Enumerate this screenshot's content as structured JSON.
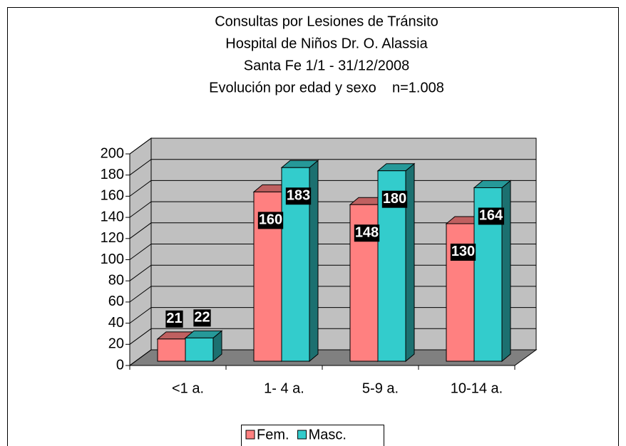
{
  "chart_data": {
    "type": "bar3d",
    "title": [
      "Consultas por Lesiones de Tránsito",
      "Hospital de Niños Dr. O. Alassia",
      "Santa Fe 1/1 - 31/12/2008",
      "Evolución por edad y sexo    n=1.008"
    ],
    "categories": [
      "<1 a.",
      "1- 4 a.",
      "5-9 a.",
      "10-14 a."
    ],
    "series": [
      {
        "name": "Fem.",
        "color": "#FF8080",
        "values": [
          21,
          160,
          148,
          130
        ]
      },
      {
        "name": "Masc.",
        "color": "#33CCCC",
        "values": [
          22,
          183,
          180,
          164
        ]
      }
    ],
    "ylim": [
      0,
      200
    ],
    "yticks": [
      0,
      20,
      40,
      60,
      80,
      100,
      120,
      140,
      160,
      180,
      200
    ],
    "grid": true,
    "legend": "bottom"
  }
}
